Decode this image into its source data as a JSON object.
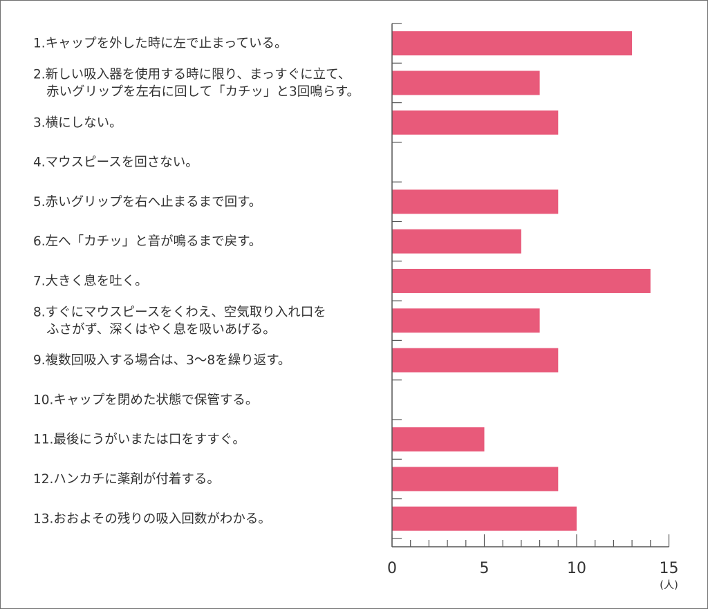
{
  "chart_data": {
    "type": "bar",
    "orientation": "horizontal",
    "title": "",
    "xlabel": "",
    "ylabel": "",
    "unit": "(人)",
    "bar_color": "#e85a7a",
    "xlim": [
      0,
      15
    ],
    "x_ticks": [
      0,
      5,
      10,
      15
    ],
    "grid": false,
    "categories": [
      {
        "lines": [
          "1.キャップを外した時に左で止まっている。"
        ]
      },
      {
        "lines": [
          "2.新しい吸入器を使用する時に限り、まっすぐに立て、",
          "赤いグリップを左右に回して「カチッ」と3回鳴らす。"
        ]
      },
      {
        "lines": [
          "3.横にしない。"
        ]
      },
      {
        "lines": [
          "4.マウスピースを回さない。"
        ]
      },
      {
        "lines": [
          "5.赤いグリップを右へ止まるまで回す。"
        ]
      },
      {
        "lines": [
          "6.左へ「カチッ」と音が鳴るまで戻す。"
        ]
      },
      {
        "lines": [
          "7.大きく息を吐く。"
        ]
      },
      {
        "lines": [
          "8.すぐにマウスピースをくわえ、空気取り入れ口を",
          "ふさがず、深くはやく息を吸いあげる。"
        ]
      },
      {
        "lines": [
          "9.複数回吸入する場合は、3～8を繰り返す。"
        ]
      },
      {
        "lines": [
          "10.キャップを閉めた状態で保管する。"
        ]
      },
      {
        "lines": [
          "11.最後にうがいまたは口をすすぐ。"
        ]
      },
      {
        "lines": [
          "12.ハンカチに薬剤が付着する。"
        ]
      },
      {
        "lines": [
          "13.おおよその残りの吸入回数がわかる。"
        ]
      }
    ],
    "values": [
      13,
      8,
      9,
      0,
      9,
      7,
      14,
      8,
      9,
      0,
      5,
      9,
      10
    ]
  }
}
